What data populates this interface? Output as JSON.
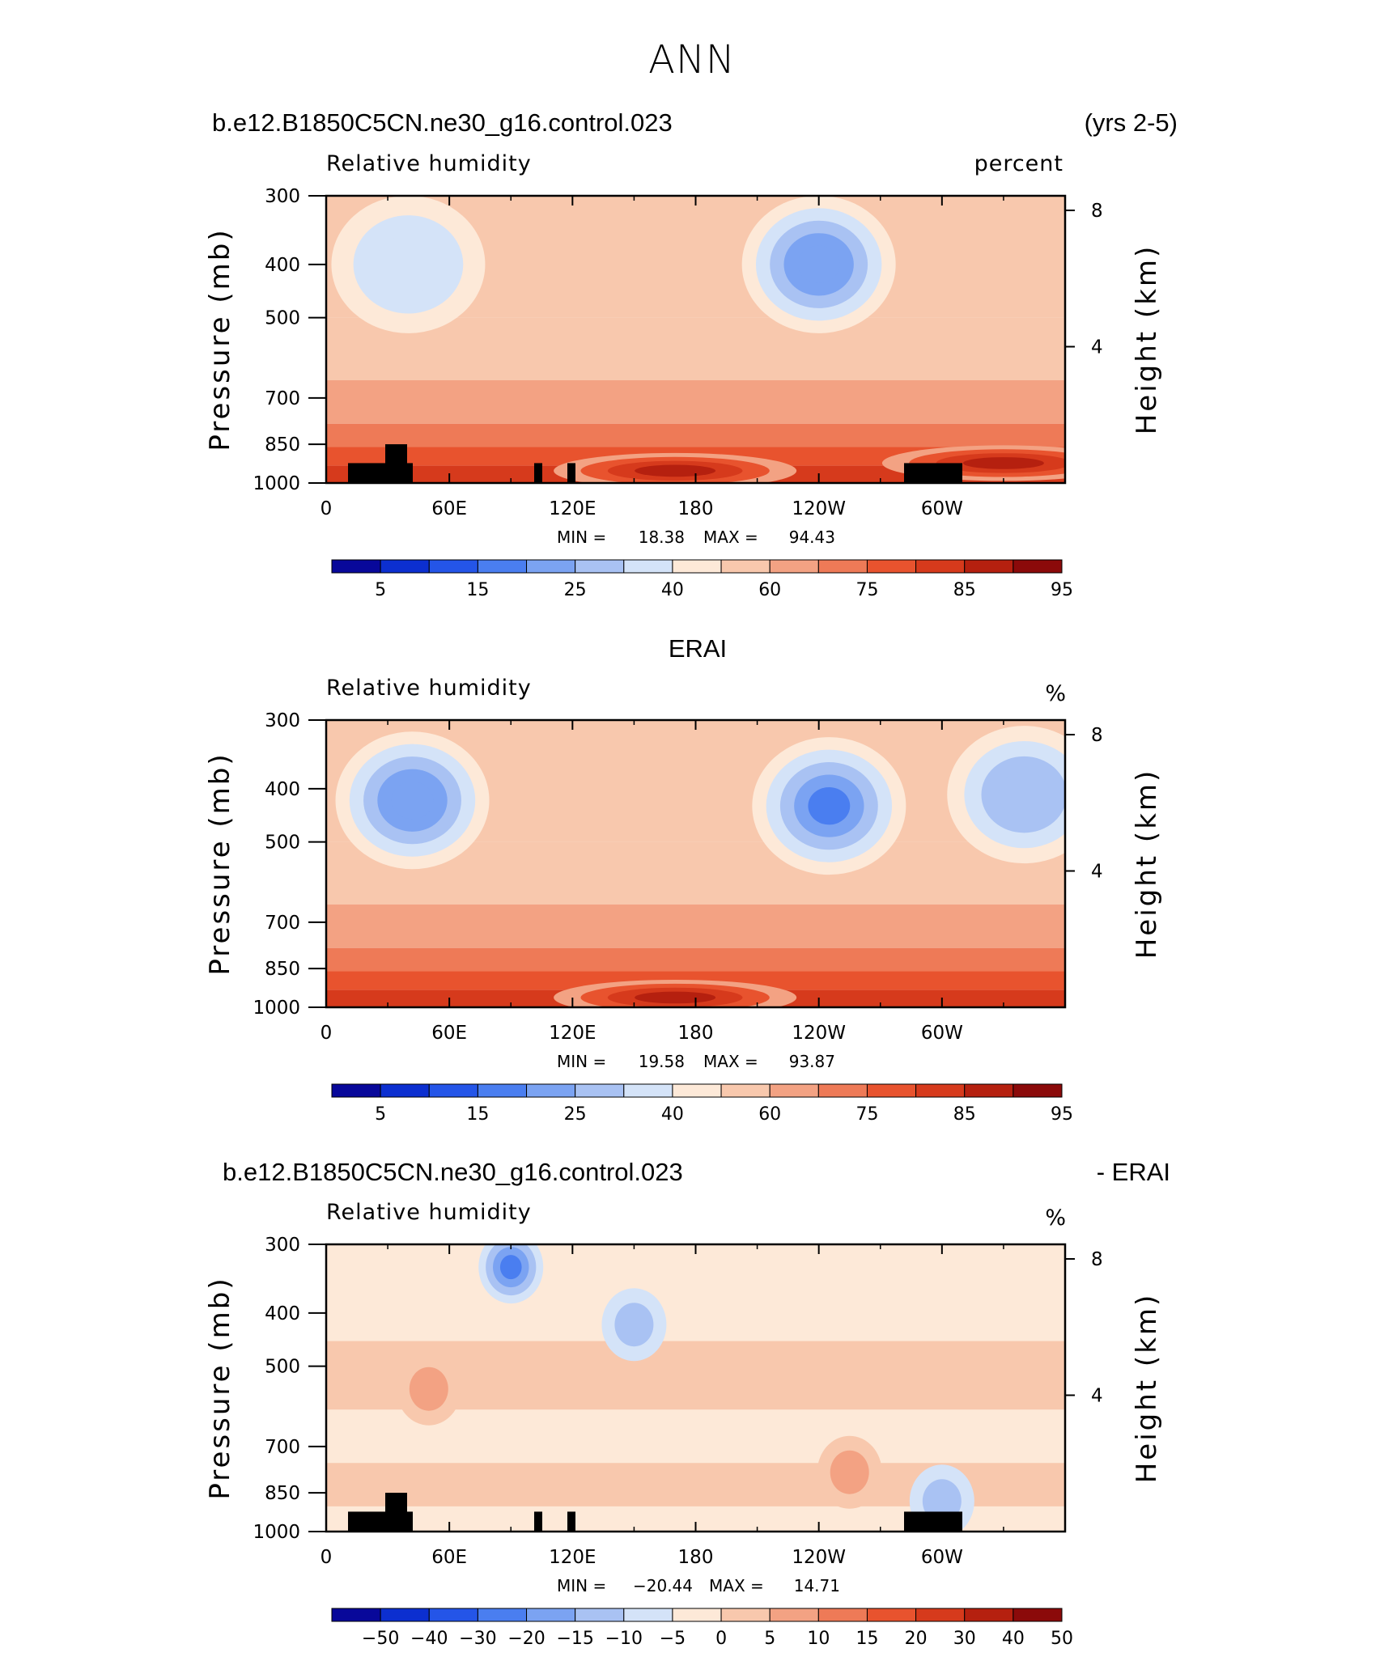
{
  "page_title": "ANN",
  "colors": {
    "blue_to_red": [
      "#08089a",
      "#0c2fd0",
      "#2455e8",
      "#4a7ef0",
      "#7ba3f2",
      "#a9c2f3",
      "#d4e3f8",
      "#fde9d8",
      "#f8c8ad",
      "#f3a283",
      "#ee7a57",
      "#e8532e",
      "#d63a1c",
      "#b5200f",
      "#8b0a0a"
    ],
    "land_mask": "#000000"
  },
  "panels": [
    {
      "id": "model",
      "case_name": "b.e12.B1850C5CN.ne30_g16.control.023",
      "right_title": "(yrs 2-5)",
      "left_label": "Relative humidity",
      "right_label": "percent",
      "stats": {
        "min_label": "MIN =",
        "min": "18.38",
        "max_label": "MAX =",
        "max": "94.43"
      },
      "colorbar_labels": [
        "5",
        "15",
        "25",
        "40",
        "60",
        "75",
        "85",
        "95"
      ]
    },
    {
      "id": "obs",
      "case_name": "ERAI",
      "right_title": "",
      "left_label": "Relative humidity",
      "right_label": "%",
      "stats": {
        "min_label": "MIN =",
        "min": "19.58",
        "max_label": "MAX =",
        "max": "93.87"
      },
      "colorbar_labels": [
        "5",
        "15",
        "25",
        "40",
        "60",
        "75",
        "85",
        "95"
      ]
    },
    {
      "id": "diff",
      "case_name": "b.e12.B1850C5CN.ne30_g16.control.023",
      "right_title": "- ERAI",
      "left_label": "Relative humidity",
      "right_label": "%",
      "stats": {
        "min_label": "MIN =",
        "min": "−20.44",
        "max_label": "MAX =",
        "max": "14.71"
      },
      "colorbar_labels": [
        "−50",
        "−40",
        "−30",
        "−20",
        "−15",
        "−10",
        "−5",
        "0",
        "5",
        "10",
        "15",
        "20",
        "30",
        "40",
        "50"
      ]
    }
  ],
  "chart_data": [
    {
      "type": "heatmap",
      "title": "b.e12.B1850C5CN.ne30_g16.control.023 (yrs 2-5)",
      "subtitle": "Relative humidity",
      "units": "percent",
      "xlabel": "",
      "ylabel": "Pressure (mb)",
      "y2label": "Height (km)",
      "x_ticks": [
        "0",
        "60E",
        "120E",
        "180",
        "120W",
        "60W"
      ],
      "xlim": [
        0,
        360
      ],
      "y_ticks": [
        300,
        400,
        500,
        700,
        850,
        1000
      ],
      "y_scale": "log",
      "ylim": [
        1000,
        300
      ],
      "y2_ticks": [
        4,
        8
      ],
      "min": 18.38,
      "max": 94.43,
      "levels": [
        5,
        10,
        15,
        20,
        25,
        30,
        40,
        50,
        60,
        70,
        75,
        80,
        85,
        90,
        95
      ],
      "features": [
        {
          "lon": 40,
          "p": 400,
          "value": 35
        },
        {
          "lon": 240,
          "p": 400,
          "value": 22
        },
        {
          "lon": 170,
          "p": 950,
          "value": 90
        },
        {
          "lon": 330,
          "p": 920,
          "value": 88
        }
      ]
    },
    {
      "type": "heatmap",
      "title": "ERAI",
      "subtitle": "Relative humidity",
      "units": "%",
      "xlabel": "",
      "ylabel": "Pressure (mb)",
      "y2label": "Height (km)",
      "x_ticks": [
        "0",
        "60E",
        "120E",
        "180",
        "120W",
        "60W"
      ],
      "xlim": [
        0,
        360
      ],
      "y_ticks": [
        300,
        400,
        500,
        700,
        850,
        1000
      ],
      "y_scale": "log",
      "ylim": [
        1000,
        300
      ],
      "y2_ticks": [
        4,
        8
      ],
      "min": 19.58,
      "max": 93.87,
      "levels": [
        5,
        10,
        15,
        20,
        25,
        30,
        40,
        50,
        60,
        70,
        75,
        80,
        85,
        90,
        95
      ],
      "features": [
        {
          "lon": 42,
          "p": 420,
          "value": 22
        },
        {
          "lon": 245,
          "p": 430,
          "value": 20
        },
        {
          "lon": 340,
          "p": 410,
          "value": 30
        },
        {
          "lon": 170,
          "p": 960,
          "value": 88
        }
      ]
    },
    {
      "type": "heatmap",
      "title": "b.e12.B1850C5CN.ne30_g16.control.023 - ERAI",
      "subtitle": "Relative humidity",
      "units": "%",
      "xlabel": "",
      "ylabel": "Pressure (mb)",
      "y2label": "Height (km)",
      "x_ticks": [
        "0",
        "60E",
        "120E",
        "180",
        "120W",
        "60W"
      ],
      "xlim": [
        0,
        360
      ],
      "y_ticks": [
        300,
        400,
        500,
        700,
        850,
        1000
      ],
      "y_scale": "log",
      "ylim": [
        1000,
        300
      ],
      "y2_ticks": [
        4,
        8
      ],
      "min": -20.44,
      "max": 14.71,
      "levels": [
        -50,
        -40,
        -30,
        -20,
        -15,
        -10,
        -5,
        0,
        5,
        10,
        15,
        20,
        30,
        40,
        50
      ],
      "features": [
        {
          "lon": 90,
          "p": 330,
          "value": -20
        },
        {
          "lon": 150,
          "p": 420,
          "value": -8
        },
        {
          "lon": 50,
          "p": 550,
          "value": 10
        },
        {
          "lon": 255,
          "p": 780,
          "value": 12
        },
        {
          "lon": 300,
          "p": 880,
          "value": -12
        }
      ]
    }
  ]
}
